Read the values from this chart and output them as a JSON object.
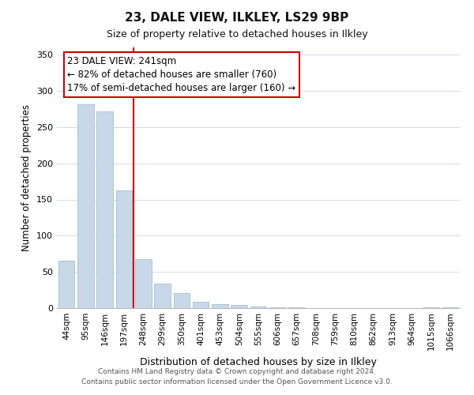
{
  "title": "23, DALE VIEW, ILKLEY, LS29 9BP",
  "subtitle": "Size of property relative to detached houses in Ilkley",
  "xlabel": "Distribution of detached houses by size in Ilkley",
  "ylabel": "Number of detached properties",
  "categories": [
    "44sqm",
    "95sqm",
    "146sqm",
    "197sqm",
    "248sqm",
    "299sqm",
    "350sqm",
    "401sqm",
    "453sqm",
    "504sqm",
    "555sqm",
    "606sqm",
    "657sqm",
    "708sqm",
    "759sqm",
    "810sqm",
    "862sqm",
    "913sqm",
    "964sqm",
    "1015sqm",
    "1066sqm"
  ],
  "values": [
    65,
    281,
    272,
    163,
    68,
    34,
    21,
    9,
    6,
    4,
    2,
    1,
    1,
    0,
    0,
    0,
    0,
    0,
    0,
    1,
    1
  ],
  "bar_color": "#c8d8e8",
  "bar_edge_color": "#a8bece",
  "vline_x_idx": 4,
  "vline_color": "#cc0000",
  "annotation_line1": "23 DALE VIEW: 241sqm",
  "annotation_line2": "← 82% of detached houses are smaller (760)",
  "annotation_line3": "17% of semi-detached houses are larger (160) →",
  "annotation_box_color": "#ffffff",
  "annotation_box_edge": "#cc0000",
  "ylim": [
    0,
    360
  ],
  "yticks": [
    0,
    50,
    100,
    150,
    200,
    250,
    300,
    350
  ],
  "footer_line1": "Contains HM Land Registry data © Crown copyright and database right 2024.",
  "footer_line2": "Contains public sector information licensed under the Open Government Licence v3.0.",
  "background_color": "#ffffff",
  "grid_color": "#d0dce8",
  "title_fontsize": 11,
  "subtitle_fontsize": 9,
  "ylabel_fontsize": 8.5,
  "xlabel_fontsize": 9,
  "tick_fontsize": 8,
  "annotation_fontsize": 8.5,
  "footer_fontsize": 6.5
}
